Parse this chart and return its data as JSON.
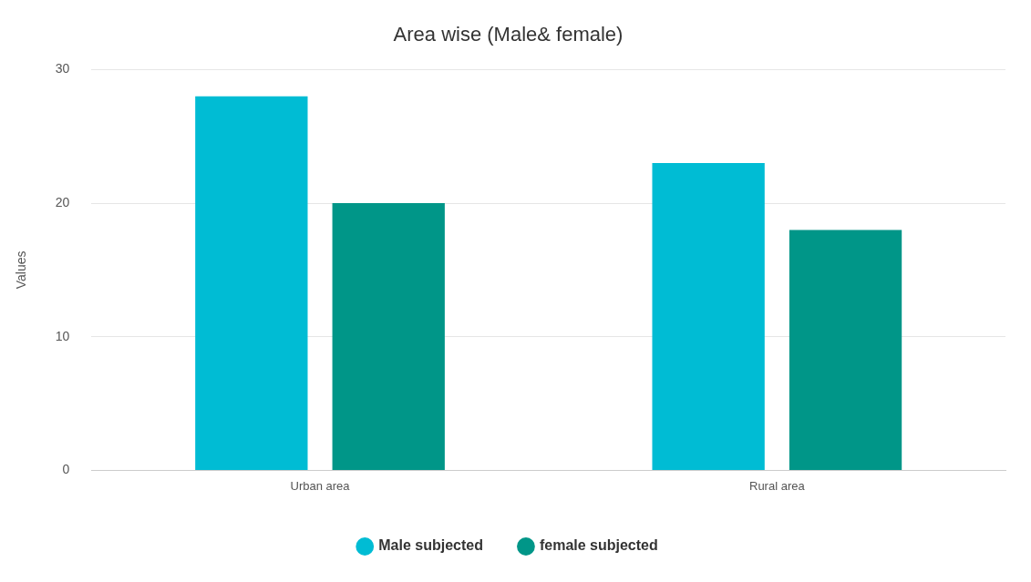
{
  "chart_data": {
    "type": "bar",
    "title": "Area wise (Male& female)",
    "ylabel": "Values",
    "categories": [
      "Urban area",
      "Rural area"
    ],
    "series": [
      {
        "name": "Male subjected",
        "color": "#00bcd4",
        "values": [
          28,
          23
        ]
      },
      {
        "name": "female subjected",
        "color": "#009688",
        "values": [
          20,
          18
        ]
      }
    ],
    "ylim": [
      0,
      30
    ],
    "yticks": [
      0,
      10,
      20,
      30
    ],
    "grid": "y",
    "legend": "bottom"
  }
}
